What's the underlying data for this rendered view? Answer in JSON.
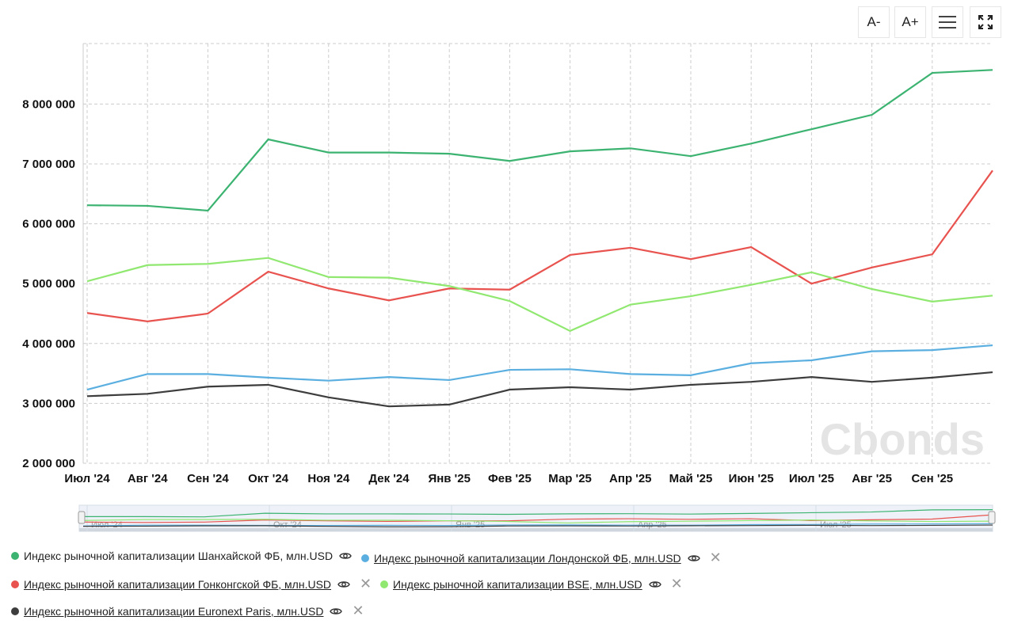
{
  "toolbar": {
    "font_smaller": "A-",
    "font_larger": "A+",
    "menu_icon": "hamburger-icon",
    "fullscreen_icon": "expand-icon"
  },
  "watermark": "Cbonds",
  "chart_data": {
    "type": "line",
    "x": [
      "Июл '24",
      "Авг '24",
      "Сен '24",
      "Окт '24",
      "Ноя '24",
      "Дек '24",
      "Янв '25",
      "Фев '25",
      "Мар '25",
      "Апр '25",
      "Май '25",
      "Июн '25",
      "Июл '25",
      "Авг '25",
      "Сен '25",
      ""
    ],
    "xticks": [
      "Июл '24",
      "Авг '24",
      "Сен '24",
      "Окт '24",
      "Ноя '24",
      "Дек '24",
      "Янв '25",
      "Фев '25",
      "Мар '25",
      "Апр '25",
      "Май '25",
      "Июн '25",
      "Июл '25",
      "Авг '25",
      "Сен '25"
    ],
    "yticks": [
      "2 000 000",
      "3 000 000",
      "4 000 000",
      "5 000 000",
      "6 000 000",
      "7 000 000",
      "8 000 000"
    ],
    "ylim": [
      2000000,
      9000000
    ],
    "grid": true,
    "legend_placement": "bottom",
    "series": [
      {
        "name": "Индекс рыночной капитализации Шанхайской ФБ, млн.USD",
        "color": "#3cb371",
        "values": [
          6310000,
          6300000,
          6220000,
          7410000,
          7190000,
          7190000,
          7170000,
          7050000,
          7210000,
          7260000,
          7130000,
          7340000,
          7580000,
          7820000,
          8520000,
          8570000
        ]
      },
      {
        "name": "Индекс рыночной капитализации Лондонской ФБ, млн.USD",
        "color": "#5aafe0",
        "values": [
          3230000,
          3490000,
          3490000,
          3430000,
          3380000,
          3440000,
          3390000,
          3560000,
          3570000,
          3490000,
          3470000,
          3670000,
          3720000,
          3870000,
          3890000,
          3970000
        ]
      },
      {
        "name": "Индекс рыночной капитализации Гонконгской ФБ, млн.USD",
        "color": "#e8534f",
        "values": [
          4510000,
          4370000,
          4500000,
          5200000,
          4920000,
          4720000,
          4920000,
          4900000,
          5480000,
          5600000,
          5410000,
          5610000,
          5000000,
          5270000,
          5490000,
          6890000
        ]
      },
      {
        "name": "Индекс рыночной капитализации BSE, млн.USD",
        "color": "#90e870",
        "values": [
          5040000,
          5310000,
          5330000,
          5430000,
          5110000,
          5100000,
          4960000,
          4710000,
          4210000,
          4650000,
          4790000,
          4980000,
          5190000,
          4910000,
          4700000,
          4800000
        ]
      },
      {
        "name": "Индекс рыночной капитализации Euronext Paris, млн.USD",
        "color": "#3d3d3d",
        "values": [
          3120000,
          3160000,
          3280000,
          3310000,
          3100000,
          2950000,
          2980000,
          3230000,
          3270000,
          3230000,
          3310000,
          3360000,
          3440000,
          3360000,
          3430000,
          3520000
        ]
      }
    ],
    "navigator_labels": [
      "Июл '24",
      "Окт '24",
      "Янв '25",
      "Апр '25",
      "Июл '25"
    ]
  }
}
